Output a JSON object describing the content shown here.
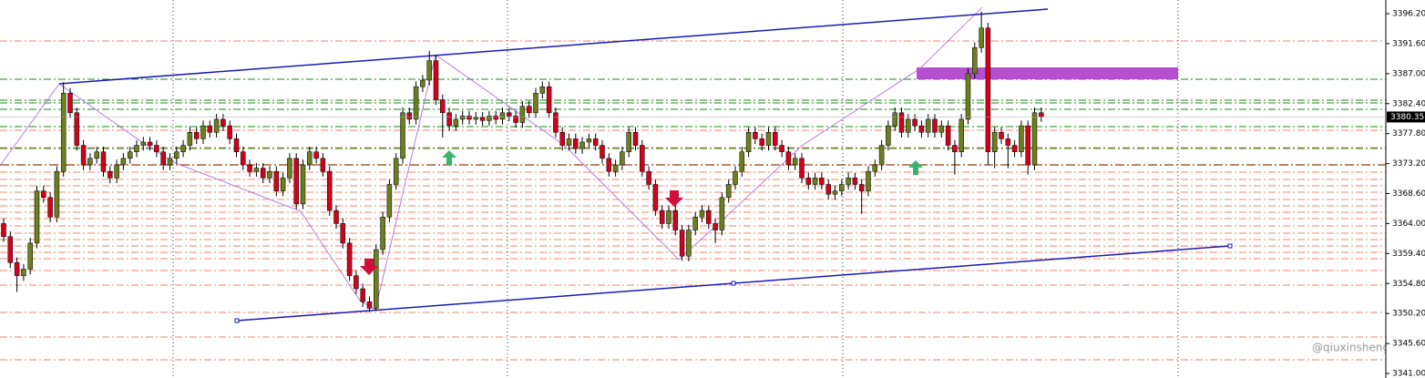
{
  "chart_data": {
    "type": "candlestick",
    "up_color": "#6b7f1f",
    "down_color": "#d0021b",
    "ylim": [
      3340.3,
      3398.3
    ],
    "yticks": [
      {
        "value": 3396.2,
        "label": "3396.20"
      },
      {
        "value": 3391.6,
        "label": "3391.60"
      },
      {
        "value": 3387,
        "label": "3387.00"
      },
      {
        "value": 3382.4,
        "label": "3382.40"
      },
      {
        "value": 3377.8,
        "label": "3377.80"
      },
      {
        "value": 3373.2,
        "label": "3373.20"
      },
      {
        "value": 3368.6,
        "label": "3368.60"
      },
      {
        "value": 3364,
        "label": "3364.00"
      },
      {
        "value": 3359.4,
        "label": "3359.40"
      },
      {
        "value": 3354.8,
        "label": "3354.80"
      },
      {
        "value": 3350.2,
        "label": "3350.20"
      },
      {
        "value": 3345.6,
        "label": "3345.60"
      },
      {
        "value": 3341,
        "label": "3341.00"
      }
    ],
    "last_price": 3380.35,
    "watermark": "@qiuxinsheng",
    "open": [
      3364,
      3362,
      3358,
      3356,
      3357,
      3361,
      3369,
      3368,
      3365,
      3372,
      3384,
      3381,
      3376,
      3373,
      3374,
      3375,
      3372,
      3371,
      3373,
      3374,
      3375,
      3376,
      3376.5,
      3376,
      3375,
      3373,
      3374,
      3375,
      3376,
      3378,
      3377,
      3379,
      3378,
      3380,
      3379,
      3377,
      3375,
      3373,
      3372,
      3372.5,
      3371,
      3372,
      3369,
      3371,
      3374,
      3367,
      3373,
      3375,
      3374,
      3372,
      3366,
      3364,
      3361,
      3356,
      3354,
      3352,
      3351,
      3360,
      3365,
      3370,
      3374,
      3381,
      3380,
      3385,
      3386,
      3389,
      3383,
      3381,
      3379,
      3380,
      3380.5,
      3380,
      3380.3,
      3379.8,
      3380.5,
      3380,
      3381,
      3380.5,
      3379.5,
      3382,
      3381,
      3384,
      3385,
      3381,
      3378,
      3376,
      3377,
      3375.5,
      3376.5,
      3377,
      3376,
      3374,
      3372,
      3373,
      3375,
      3378,
      3376,
      3372,
      3370,
      3366,
      3364,
      3366,
      3363,
      3359,
      3363,
      3365,
      3366,
      3364,
      3363,
      3368,
      3370,
      3372,
      3375,
      3378,
      3377,
      3376,
      3378,
      3376,
      3375,
      3373,
      3374,
      3371,
      3370,
      3371,
      3370,
      3368.5,
      3369,
      3370,
      3371,
      3370,
      3369,
      3372,
      3373,
      3376,
      3379,
      3381,
      3378,
      3380,
      3379,
      3378,
      3380,
      3378,
      3379,
      3376,
      3375,
      3380,
      3387,
      3391,
      3394,
      3375,
      3378,
      3377,
      3376,
      3375,
      3379,
      3373,
      3381
    ],
    "high": [
      3364.8,
      3362.8,
      3358.8,
      3357.8,
      3361.8,
      3369.8,
      3369.8,
      3368.8,
      3372.8,
      3385.7,
      3384.8,
      3381.8,
      3376.8,
      3374.8,
      3375.8,
      3375.8,
      3372.8,
      3373.8,
      3374.8,
      3375.8,
      3376.8,
      3377.3,
      3377.3,
      3376.8,
      3375.8,
      3374.8,
      3375.8,
      3376.8,
      3378.8,
      3378.8,
      3379.8,
      3379.8,
      3380.8,
      3380.8,
      3379.8,
      3377.8,
      3375.8,
      3373.8,
      3373.3,
      3373.3,
      3372.8,
      3372.8,
      3371.8,
      3374.8,
      3374.8,
      3373.8,
      3375.8,
      3375.8,
      3374.8,
      3372.8,
      3366.8,
      3364.8,
      3361.8,
      3356.8,
      3354.8,
      3352.8,
      3360.8,
      3365.8,
      3370.8,
      3374.8,
      3381.8,
      3381.8,
      3385.8,
      3386.8,
      3390.5,
      3389.8,
      3383.8,
      3381.8,
      3380.8,
      3381.3,
      3381.3,
      3381.1,
      3381.1,
      3381.3,
      3381.3,
      3381.8,
      3381.8,
      3381.3,
      3382.8,
      3382.8,
      3384.8,
      3385.8,
      3385.8,
      3381.8,
      3378.8,
      3377.8,
      3377.8,
      3377.3,
      3377.8,
      3377.8,
      3376.8,
      3374.8,
      3373.8,
      3375.8,
      3378.8,
      3378.8,
      3376.8,
      3372.8,
      3370.8,
      3366.8,
      3366.8,
      3366.8,
      3363.8,
      3363.8,
      3365.8,
      3366.8,
      3366.8,
      3364.8,
      3368.8,
      3370.8,
      3372.8,
      3375.8,
      3378.8,
      3378.8,
      3377.8,
      3378.8,
      3378.8,
      3376.8,
      3375.8,
      3374.8,
      3374.8,
      3371.8,
      3371.8,
      3371.8,
      3370.8,
      3369.8,
      3370.8,
      3371.8,
      3371.8,
      3370.8,
      3372.8,
      3373.8,
      3376.8,
      3379.8,
      3381.8,
      3381.8,
      3380.8,
      3380.8,
      3379.8,
      3380.8,
      3380.8,
      3379.8,
      3379.8,
      3376.8,
      3380.8,
      3387.8,
      3391.8,
      3396.5,
      3394.8,
      3378.8,
      3378.8,
      3377.8,
      3376.8,
      3379.8,
      3379.8,
      3381.8,
      3381.8
    ],
    "low": [
      3361.2,
      3357.2,
      3353.5,
      3355.2,
      3356.2,
      3360.2,
      3367.2,
      3364.2,
      3364.2,
      3371.2,
      3380.2,
      3375.2,
      3372.2,
      3372.2,
      3373.2,
      3371.2,
      3370.2,
      3370.2,
      3372.2,
      3373.2,
      3374.2,
      3375.2,
      3375.2,
      3374.2,
      3372.2,
      3372.2,
      3373.2,
      3374.2,
      3375.2,
      3376.2,
      3376.2,
      3377.2,
      3377.2,
      3378.2,
      3376.2,
      3374.2,
      3372.2,
      3371.2,
      3371.2,
      3370.2,
      3370.2,
      3368.2,
      3368.2,
      3370.2,
      3366.2,
      3366.2,
      3372.2,
      3373.2,
      3371.2,
      3365.2,
      3363.2,
      3360.2,
      3355.2,
      3353.2,
      3351.2,
      3350.5,
      3350.6,
      3359.2,
      3364.2,
      3369.2,
      3373.2,
      3379.2,
      3379.2,
      3384.2,
      3385.2,
      3382.2,
      3377.2,
      3378.2,
      3378.2,
      3379.2,
      3379.2,
      3379.2,
      3379,
      3379,
      3379.2,
      3379.2,
      3379.7,
      3378.7,
      3378.7,
      3380.2,
      3380.2,
      3383.2,
      3380.2,
      3377.2,
      3375.2,
      3375.2,
      3374.7,
      3374.7,
      3375.7,
      3375.2,
      3373.2,
      3371.2,
      3371.2,
      3372.2,
      3374.2,
      3375.2,
      3371.2,
      3369.2,
      3365.2,
      3363.2,
      3363.2,
      3362.2,
      3358.3,
      3358.2,
      3362.2,
      3364.2,
      3363.2,
      3361,
      3362.2,
      3367.2,
      3369.2,
      3371.2,
      3374.2,
      3376.2,
      3375.2,
      3375.2,
      3375.2,
      3374.2,
      3372.2,
      3372.2,
      3370.2,
      3369.2,
      3369.2,
      3369.2,
      3367.7,
      3367.7,
      3368.2,
      3369.2,
      3369.2,
      3365.5,
      3368.2,
      3371.2,
      3372.2,
      3375.2,
      3378.2,
      3377.2,
      3377.2,
      3378.2,
      3377.2,
      3377.2,
      3377.2,
      3377.2,
      3375.2,
      3371.5,
      3374.2,
      3379.2,
      3386.2,
      3390.2,
      3373,
      3372.5,
      3376.2,
      3372.5,
      3374.2,
      3374.2,
      3371.5,
      3372.2,
      3379.6
    ],
    "close": [
      3362,
      3358,
      3356,
      3357,
      3361,
      3369,
      3368,
      3365,
      3372,
      3384,
      3381,
      3376,
      3373,
      3374,
      3375,
      3372,
      3371,
      3373,
      3374,
      3375,
      3376,
      3376.5,
      3376,
      3375,
      3373,
      3374,
      3375,
      3376,
      3378,
      3377,
      3379,
      3378,
      3380,
      3379,
      3377,
      3375,
      3373,
      3372,
      3372.5,
      3371,
      3372,
      3369,
      3371,
      3374,
      3367,
      3373,
      3375,
      3374,
      3372,
      3366,
      3364,
      3361,
      3356,
      3354,
      3352,
      3351,
      3360,
      3365,
      3370,
      3374,
      3381,
      3380,
      3385,
      3386,
      3389,
      3383,
      3381,
      3379,
      3380,
      3380.5,
      3380,
      3380.3,
      3379.8,
      3380.5,
      3380,
      3381,
      3380.5,
      3379.5,
      3382,
      3381,
      3384,
      3385,
      3381,
      3378,
      3376,
      3377,
      3375.5,
      3376.5,
      3377,
      3376,
      3374,
      3372,
      3373,
      3375,
      3378,
      3376,
      3372,
      3370,
      3366,
      3364,
      3366,
      3363,
      3359,
      3363,
      3365,
      3366,
      3364,
      3363,
      3368,
      3370,
      3372,
      3375,
      3378,
      3377,
      3376,
      3378,
      3376,
      3375,
      3373,
      3374,
      3371,
      3370,
      3371,
      3370,
      3368.5,
      3369,
      3370,
      3371,
      3370,
      3369,
      3372,
      3373,
      3376,
      3379,
      3381,
      3378,
      3380,
      3379,
      3378,
      3380,
      3378,
      3379,
      3376,
      3375,
      3380,
      3387,
      3391,
      3394,
      3375,
      3378,
      3377,
      3376,
      3375,
      3379,
      3373,
      3381,
      3380.4
    ]
  }
}
